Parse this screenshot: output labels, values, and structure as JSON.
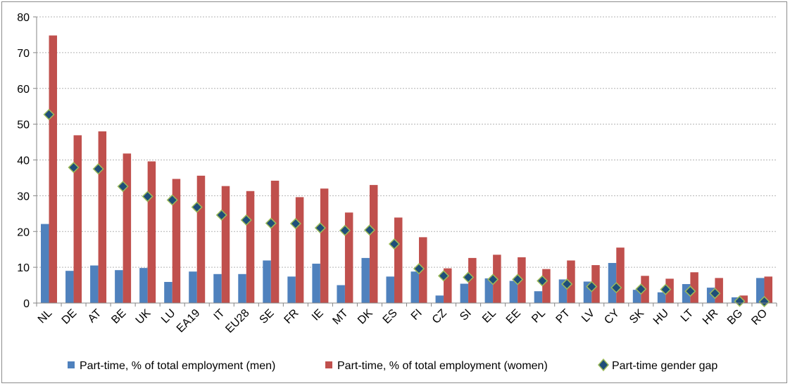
{
  "chart_data": {
    "type": "bar",
    "categories": [
      "NL",
      "DE",
      "AT",
      "BE",
      "UK",
      "LU",
      "EA19",
      "IT",
      "EU28",
      "SE",
      "FR",
      "IE",
      "MT",
      "DK",
      "ES",
      "FI",
      "CZ",
      "SI",
      "EL",
      "EE",
      "PL",
      "PT",
      "LV",
      "CY",
      "SK",
      "HU",
      "LT",
      "HR",
      "BG",
      "RO"
    ],
    "series": [
      {
        "name": "Part-time, % of total employment (men)",
        "kind": "bar",
        "color": "#4f81bd",
        "values": [
          22.1,
          9.0,
          10.5,
          9.2,
          9.8,
          5.9,
          8.8,
          8.1,
          8.1,
          11.9,
          7.4,
          11.0,
          5.0,
          12.6,
          7.4,
          8.8,
          2.1,
          5.4,
          6.9,
          6.2,
          3.3,
          6.6,
          6.0,
          11.2,
          3.7,
          3.0,
          5.3,
          4.3,
          1.6,
          7.0
        ]
      },
      {
        "name": "Part-time, % of total employment (women)",
        "kind": "bar",
        "color": "#c0504d",
        "values": [
          74.8,
          46.9,
          48.0,
          41.8,
          39.6,
          34.7,
          35.6,
          32.7,
          31.3,
          34.2,
          29.6,
          32.0,
          25.3,
          33.0,
          23.9,
          18.4,
          9.7,
          12.6,
          13.5,
          12.8,
          9.5,
          11.9,
          10.6,
          15.5,
          7.6,
          6.8,
          8.6,
          7.0,
          2.1,
          7.4
        ]
      },
      {
        "name": "Part-time gender gap",
        "kind": "marker",
        "color": "#1f4e79",
        "edge": "#9bbb59",
        "values": [
          52.7,
          37.9,
          37.5,
          32.6,
          29.8,
          28.8,
          26.8,
          24.6,
          23.2,
          22.3,
          22.2,
          21.0,
          20.3,
          20.4,
          16.5,
          9.6,
          7.6,
          7.2,
          6.6,
          6.6,
          6.2,
          5.3,
          4.6,
          4.3,
          3.9,
          3.8,
          3.3,
          2.7,
          0.5,
          0.4
        ]
      }
    ],
    "ylim": [
      0,
      80
    ],
    "yticks": [
      0,
      10,
      20,
      30,
      40,
      50,
      60,
      70,
      80
    ],
    "grid": true,
    "legend": "bottom"
  }
}
